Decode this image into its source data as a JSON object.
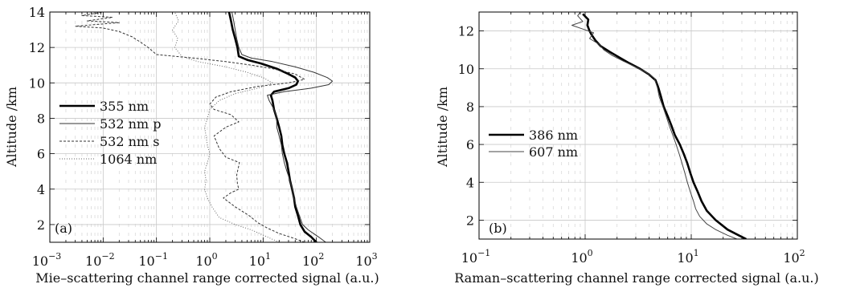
{
  "chart_data": [
    {
      "type": "line",
      "panel_label": "(a)",
      "xlabel": "Mie–scattering channel range corrected signal (a.u.)",
      "ylabel": "Altitude /km",
      "x_scale": "log",
      "xlim": [
        0.001,
        1000
      ],
      "ylim": [
        1,
        14
      ],
      "x_ticks": [
        {
          "value": 0.001,
          "base": "10",
          "exp": "−3"
        },
        {
          "value": 0.01,
          "base": "10",
          "exp": "−2"
        },
        {
          "value": 0.1,
          "base": "10",
          "exp": "−1"
        },
        {
          "value": 1,
          "base": "10",
          "exp": "0"
        },
        {
          "value": 10,
          "base": "10",
          "exp": "1"
        },
        {
          "value": 100,
          "base": "10",
          "exp": "2"
        },
        {
          "value": 1000,
          "base": "10",
          "exp": "3"
        }
      ],
      "y_ticks": [
        2,
        4,
        6,
        8,
        10,
        12,
        14
      ],
      "grid": true,
      "legend_position": "center-left",
      "series": [
        {
          "name": "355 nm",
          "style": "thick-solid",
          "color": "#000000",
          "points": [
            [
              100,
              1.0
            ],
            [
              80,
              1.3
            ],
            [
              60,
              1.6
            ],
            [
              50,
              2.0
            ],
            [
              45,
              2.5
            ],
            [
              40,
              3.0
            ],
            [
              38,
              3.5
            ],
            [
              35,
              4.0
            ],
            [
              32,
              4.5
            ],
            [
              30,
              5.0
            ],
            [
              28,
              5.5
            ],
            [
              25,
              6.0
            ],
            [
              23,
              6.5
            ],
            [
              22,
              7.0
            ],
            [
              20,
              7.5
            ],
            [
              18,
              8.0
            ],
            [
              16,
              8.5
            ],
            [
              15,
              9.0
            ],
            [
              14,
              9.3
            ],
            [
              16,
              9.5
            ],
            [
              30,
              9.7
            ],
            [
              42,
              9.9
            ],
            [
              45,
              10.1
            ],
            [
              40,
              10.3
            ],
            [
              30,
              10.5
            ],
            [
              18,
              10.8
            ],
            [
              9,
              11.1
            ],
            [
              5,
              11.3
            ],
            [
              3.5,
              11.5
            ],
            [
              3.3,
              12.0
            ],
            [
              3.0,
              12.5
            ],
            [
              2.7,
              13.0
            ],
            [
              2.5,
              13.5
            ],
            [
              2.3,
              14.0
            ]
          ]
        },
        {
          "name": "532 nm p",
          "style": "thin-solid",
          "color": "#333333",
          "points": [
            [
              150,
              1.0
            ],
            [
              110,
              1.3
            ],
            [
              70,
              1.7
            ],
            [
              55,
              2.0
            ],
            [
              48,
              2.5
            ],
            [
              42,
              3.0
            ],
            [
              38,
              3.5
            ],
            [
              35,
              4.0
            ],
            [
              32,
              4.5
            ],
            [
              28,
              5.0
            ],
            [
              25,
              5.5
            ],
            [
              23,
              6.0
            ],
            [
              22,
              6.5
            ],
            [
              20,
              7.0
            ],
            [
              18,
              7.5
            ],
            [
              18,
              8.0
            ],
            [
              16,
              8.5
            ],
            [
              13,
              9.0
            ],
            [
              12,
              9.3
            ],
            [
              25,
              9.5
            ],
            [
              80,
              9.7
            ],
            [
              170,
              9.9
            ],
            [
              200,
              10.1
            ],
            [
              160,
              10.3
            ],
            [
              90,
              10.6
            ],
            [
              40,
              10.9
            ],
            [
              15,
              11.2
            ],
            [
              6,
              11.4
            ],
            [
              4,
              11.6
            ],
            [
              3.5,
              12.0
            ],
            [
              3.2,
              12.5
            ],
            [
              3.0,
              13.0
            ],
            [
              2.8,
              13.5
            ],
            [
              2.6,
              14.0
            ]
          ]
        },
        {
          "name": "532 nm s",
          "style": "dashed",
          "color": "#333333",
          "points": [
            [
              60,
              1.0
            ],
            [
              40,
              1.2
            ],
            [
              20,
              1.5
            ],
            [
              12,
              1.8
            ],
            [
              8,
              2.1
            ],
            [
              5.5,
              2.5
            ],
            [
              3,
              3.0
            ],
            [
              1.8,
              3.5
            ],
            [
              2.5,
              3.8
            ],
            [
              3.5,
              4.0
            ],
            [
              3.3,
              4.3
            ],
            [
              3.2,
              4.8
            ],
            [
              3.6,
              5.5
            ],
            [
              2,
              5.8
            ],
            [
              1.5,
              6.3
            ],
            [
              1.2,
              7.0
            ],
            [
              2,
              7.5
            ],
            [
              3.5,
              7.8
            ],
            [
              2.5,
              8.2
            ],
            [
              1.2,
              8.5
            ],
            [
              1.0,
              8.8
            ],
            [
              1.3,
              9.2
            ],
            [
              2.5,
              9.5
            ],
            [
              8,
              9.8
            ],
            [
              30,
              10.0
            ],
            [
              60,
              10.2
            ],
            [
              40,
              10.5
            ],
            [
              15,
              10.8
            ],
            [
              6,
              11.0
            ],
            [
              2,
              11.2
            ],
            [
              0.5,
              11.4
            ],
            [
              0.1,
              11.6
            ],
            [
              0.07,
              12.0
            ],
            [
              0.05,
              12.3
            ],
            [
              0.035,
              12.6
            ],
            [
              0.02,
              12.9
            ],
            [
              0.01,
              13.1
            ],
            [
              0.003,
              13.2
            ],
            [
              0.02,
              13.4
            ],
            [
              0.005,
              13.5
            ],
            [
              0.015,
              13.7
            ],
            [
              0.004,
              13.8
            ],
            [
              0.01,
              14.0
            ]
          ]
        },
        {
          "name": "1064 nm",
          "style": "dotted",
          "color": "#666666",
          "points": [
            [
              20,
              1.0
            ],
            [
              12,
              1.3
            ],
            [
              6,
              1.7
            ],
            [
              3,
              2.0
            ],
            [
              1.5,
              2.4
            ],
            [
              1.1,
              3.0
            ],
            [
              0.9,
              3.5
            ],
            [
              0.8,
              4.0
            ],
            [
              0.85,
              4.5
            ],
            [
              0.8,
              5.0
            ],
            [
              0.9,
              5.5
            ],
            [
              1.0,
              6.0
            ],
            [
              0.9,
              6.5
            ],
            [
              0.85,
              7.0
            ],
            [
              0.8,
              7.5
            ],
            [
              0.9,
              8.0
            ],
            [
              1.0,
              8.5
            ],
            [
              1.5,
              9.0
            ],
            [
              3,
              9.4
            ],
            [
              8,
              9.7
            ],
            [
              15,
              10.0
            ],
            [
              10,
              10.3
            ],
            [
              5,
              10.6
            ],
            [
              2,
              10.9
            ],
            [
              0.6,
              11.2
            ],
            [
              0.3,
              11.5
            ],
            [
              0.22,
              12.0
            ],
            [
              0.25,
              12.5
            ],
            [
              0.2,
              13.0
            ],
            [
              0.26,
              13.5
            ],
            [
              0.22,
              14.0
            ]
          ]
        }
      ]
    },
    {
      "type": "line",
      "panel_label": "(b)",
      "xlabel": "Raman–scattering channel range corrected signal (a.u.)",
      "ylabel": "Altitude /km",
      "x_scale": "log",
      "xlim": [
        0.1,
        100
      ],
      "ylim": [
        1,
        13
      ],
      "x_ticks": [
        {
          "value": 0.1,
          "base": "10",
          "exp": "−1"
        },
        {
          "value": 1,
          "base": "10",
          "exp": "0"
        },
        {
          "value": 10,
          "base": "10",
          "exp": "1"
        },
        {
          "value": 100,
          "base": "10",
          "exp": "2"
        }
      ],
      "y_ticks": [
        2,
        4,
        6,
        8,
        10,
        12
      ],
      "grid": true,
      "legend_position": "center-left",
      "series": [
        {
          "name": "386 nm",
          "style": "thick-solid",
          "color": "#000000",
          "points": [
            [
              33,
              1.0
            ],
            [
              28,
              1.2
            ],
            [
              22,
              1.5
            ],
            [
              17,
              2.0
            ],
            [
              14,
              2.5
            ],
            [
              12.5,
              3.0
            ],
            [
              11.5,
              3.5
            ],
            [
              10.5,
              4.0
            ],
            [
              9.8,
              4.5
            ],
            [
              9.2,
              5.0
            ],
            [
              8.5,
              5.5
            ],
            [
              7.8,
              6.0
            ],
            [
              7.0,
              6.5
            ],
            [
              6.5,
              7.0
            ],
            [
              6.0,
              7.5
            ],
            [
              5.5,
              8.0
            ],
            [
              5.2,
              8.5
            ],
            [
              4.9,
              9.0
            ],
            [
              4.6,
              9.4
            ],
            [
              4.0,
              9.7
            ],
            [
              3.3,
              10.0
            ],
            [
              2.6,
              10.3
            ],
            [
              2.1,
              10.6
            ],
            [
              1.7,
              10.9
            ],
            [
              1.4,
              11.2
            ],
            [
              1.25,
              11.5
            ],
            [
              1.15,
              11.8
            ],
            [
              1.1,
              12.0
            ],
            [
              1.05,
              12.3
            ],
            [
              1.07,
              12.6
            ],
            [
              0.95,
              12.9
            ]
          ]
        },
        {
          "name": "607 nm",
          "style": "thin-solid",
          "color": "#444444",
          "points": [
            [
              27,
              1.0
            ],
            [
              22,
              1.2
            ],
            [
              17,
              1.5
            ],
            [
              14,
              1.8
            ],
            [
              12,
              2.2
            ],
            [
              11,
              2.6
            ],
            [
              10.5,
              3.0
            ],
            [
              9.8,
              3.5
            ],
            [
              9.2,
              4.0
            ],
            [
              8.7,
              4.5
            ],
            [
              8.2,
              5.0
            ],
            [
              7.7,
              5.5
            ],
            [
              7.2,
              6.0
            ],
            [
              6.7,
              6.5
            ],
            [
              6.2,
              7.0
            ],
            [
              5.8,
              7.5
            ],
            [
              5.4,
              8.0
            ],
            [
              5.0,
              8.5
            ],
            [
              4.8,
              9.0
            ],
            [
              4.5,
              9.5
            ],
            [
              3.8,
              9.8
            ],
            [
              3.0,
              10.1
            ],
            [
              2.3,
              10.4
            ],
            [
              1.8,
              10.7
            ],
            [
              1.5,
              11.0
            ],
            [
              1.35,
              11.3
            ],
            [
              1.1,
              11.6
            ],
            [
              1.2,
              11.9
            ],
            [
              0.95,
              12.1
            ],
            [
              0.75,
              12.3
            ],
            [
              0.95,
              12.5
            ],
            [
              0.85,
              12.8
            ],
            [
              0.9,
              13.0
            ]
          ]
        }
      ]
    }
  ]
}
